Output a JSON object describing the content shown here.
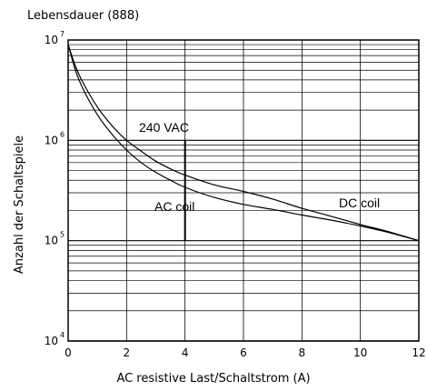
{
  "chart_data": {
    "type": "line",
    "title": "Lebensdauer (888)",
    "xlabel": "AC resistive Last/Schaltstrom (A)",
    "ylabel": "Anzahl der Schaltspiele",
    "xlim": [
      0,
      12
    ],
    "ylim": [
      10000,
      10000000
    ],
    "y_scale": "log",
    "grid": true,
    "x_ticks": [
      "0",
      "2",
      "4",
      "6",
      "8",
      "10",
      "12"
    ],
    "y_ticks": [
      {
        "base": "10",
        "exp": "4",
        "value": 10000
      },
      {
        "base": "10",
        "exp": "5",
        "value": 100000
      },
      {
        "base": "10",
        "exp": "6",
        "value": 1000000
      },
      {
        "base": "10",
        "exp": "7",
        "value": 10000000
      }
    ],
    "series": [
      {
        "name": "DC coil",
        "x": [
          0,
          0.25,
          0.5,
          1,
          1.5,
          2,
          2.5,
          3,
          3.5,
          4,
          5,
          6,
          7,
          8,
          9,
          10,
          11,
          12
        ],
        "y": [
          9000000,
          5500000,
          3800000,
          2150000,
          1400000,
          1000000,
          780000,
          620000,
          520000,
          450000,
          360000,
          310000,
          260000,
          210000,
          175000,
          145000,
          122000,
          100000
        ]
      },
      {
        "name": "AC coil",
        "x": [
          0,
          0.25,
          0.5,
          1,
          1.5,
          2,
          2.5,
          3,
          3.5,
          4,
          5,
          6,
          7,
          8,
          9,
          10,
          11,
          12
        ],
        "y": [
          9000000,
          5000000,
          3300000,
          1800000,
          1150000,
          800000,
          600000,
          480000,
          400000,
          340000,
          270000,
          230000,
          205000,
          180000,
          160000,
          140000,
          120000,
          100000
        ]
      }
    ],
    "marker": {
      "x": 4,
      "y_from": 100000,
      "y_to": 1000000,
      "label": "240 VAC"
    },
    "annotations": [
      "240 VAC",
      "AC coil",
      "DC coil"
    ]
  }
}
